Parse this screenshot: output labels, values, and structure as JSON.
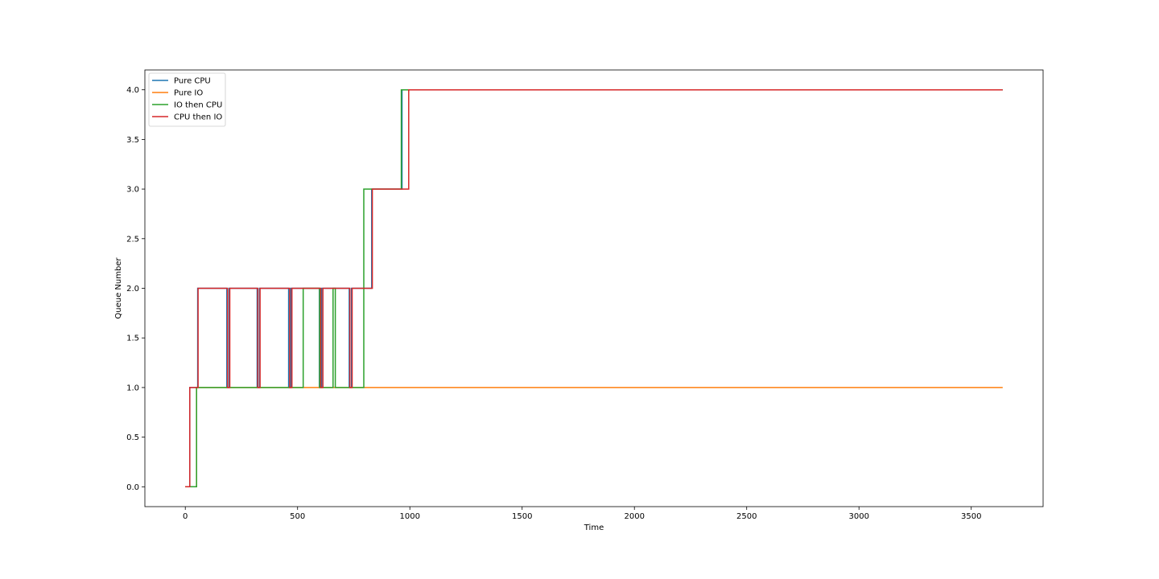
{
  "chart_data": {
    "type": "line",
    "title": "",
    "xlabel": "Time",
    "ylabel": "Queue Number",
    "xlim": [
      -180,
      3820
    ],
    "ylim": [
      -0.2,
      4.2
    ],
    "xticks": [
      0,
      500,
      1000,
      1500,
      2000,
      2500,
      3000,
      3500
    ],
    "yticks": [
      0.0,
      0.5,
      1.0,
      1.5,
      2.0,
      2.5,
      3.0,
      3.5,
      4.0
    ],
    "xtick_labels": [
      "0",
      "500",
      "1000",
      "1500",
      "2000",
      "2500",
      "3000",
      "3500"
    ],
    "ytick_labels": [
      "0.0",
      "0.5",
      "1.0",
      "1.5",
      "2.0",
      "2.5",
      "3.0",
      "3.5",
      "4.0"
    ],
    "grid": false,
    "legend_position": "top-left",
    "series": [
      {
        "name": "Pure CPU",
        "color": "#1f77b4",
        "x": [
          0,
          20,
          20,
          55,
          55,
          185,
          185,
          195,
          195,
          320,
          320,
          330,
          330,
          460,
          460,
          470,
          470,
          597,
          597,
          607,
          607,
          730,
          730,
          740,
          740,
          830,
          830,
          965,
          965,
          1000,
          1000,
          3640
        ],
        "y": [
          0,
          0,
          1,
          1,
          2,
          2,
          1,
          1,
          2,
          2,
          1,
          1,
          2,
          2,
          1,
          1,
          2,
          2,
          1,
          1,
          2,
          2,
          1,
          1,
          2,
          2,
          3,
          3,
          4,
          4,
          4,
          4
        ]
      },
      {
        "name": "Pure IO",
        "color": "#ff7f0e",
        "x": [
          0,
          50,
          50,
          3640
        ],
        "y": [
          0,
          0,
          1,
          1
        ]
      },
      {
        "name": "IO then CPU",
        "color": "#2ca02c",
        "x": [
          0,
          50,
          50,
          525,
          525,
          598,
          598,
          658,
          658,
          668,
          668,
          795,
          795,
          962,
          962,
          3640
        ],
        "y": [
          0,
          0,
          1,
          1,
          2,
          2,
          1,
          1,
          2,
          2,
          1,
          1,
          3,
          3,
          4,
          4
        ]
      },
      {
        "name": "CPU then IO",
        "color": "#d62728",
        "x": [
          0,
          20,
          20,
          57,
          57,
          188,
          188,
          198,
          198,
          323,
          323,
          333,
          333,
          465,
          465,
          475,
          475,
          603,
          603,
          613,
          613,
          733,
          733,
          743,
          743,
          833,
          833,
          995,
          995,
          3640
        ],
        "y": [
          0,
          0,
          1,
          1,
          2,
          2,
          1,
          1,
          2,
          2,
          1,
          1,
          2,
          2,
          1,
          1,
          2,
          2,
          1,
          1,
          2,
          2,
          1,
          1,
          2,
          2,
          3,
          3,
          4,
          4
        ]
      }
    ]
  }
}
